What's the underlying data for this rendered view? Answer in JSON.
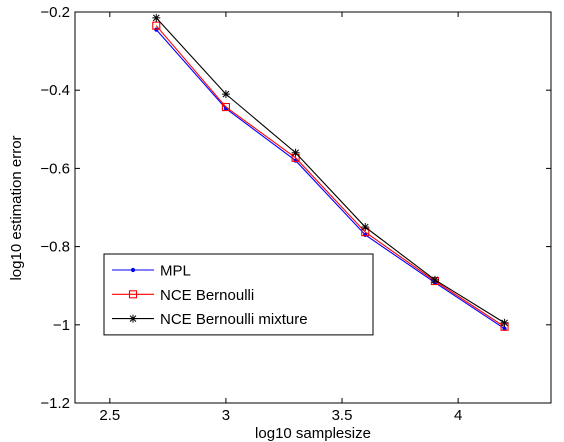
{
  "chart_data": {
    "type": "line",
    "xlabel": "log10 samplesize",
    "ylabel": "log10 estimation error",
    "xlim": [
      2.35,
      4.4
    ],
    "ylim": [
      -1.2,
      -0.2
    ],
    "x_ticks": [
      2.5,
      3,
      3.5,
      4
    ],
    "x_tick_labels": [
      "2.5",
      "3",
      "3.5",
      "4"
    ],
    "y_ticks": [
      -1.2,
      -1,
      -0.8,
      -0.6,
      -0.4,
      -0.2
    ],
    "y_tick_labels": [
      "−1.2",
      "−1",
      "−0.8",
      "−0.6",
      "−0.4",
      "−0.2"
    ],
    "grid": false,
    "legend_position": "bottom-left",
    "x": [
      2.7,
      3.0,
      3.3,
      3.6,
      3.9,
      4.2
    ],
    "series": [
      {
        "name": "MPL",
        "color": "#0000ff",
        "marker": "dot",
        "values": [
          -0.245,
          -0.447,
          -0.58,
          -0.77,
          -0.892,
          -1.01
        ]
      },
      {
        "name": "NCE Bernoulli",
        "color": "#ff0000",
        "marker": "square",
        "values": [
          -0.235,
          -0.443,
          -0.573,
          -0.763,
          -0.888,
          -1.005
        ]
      },
      {
        "name": "NCE Bernoulli mixture",
        "color": "#000000",
        "marker": "star",
        "values": [
          -0.215,
          -0.41,
          -0.56,
          -0.75,
          -0.885,
          -0.995
        ]
      }
    ]
  }
}
